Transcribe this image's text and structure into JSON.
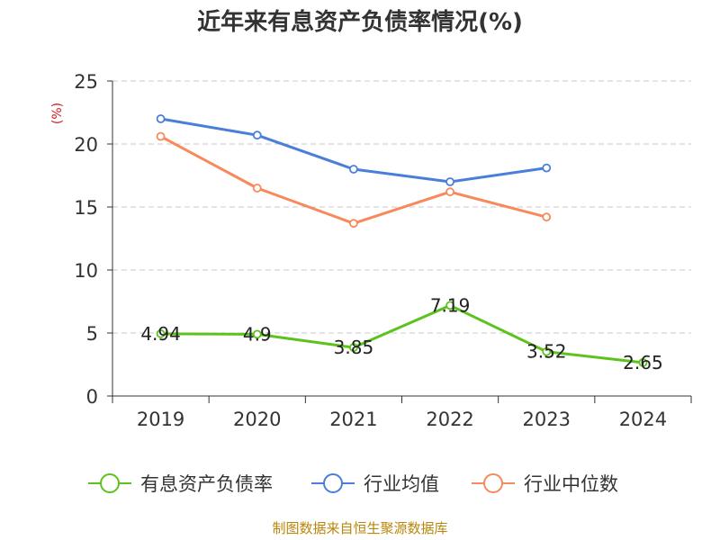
{
  "chart_data": {
    "type": "line",
    "title": "近年来有息资产负债率情况(%)",
    "xlabel": "",
    "ylabel": "(%)",
    "categories": [
      "2019",
      "2020",
      "2021",
      "2022",
      "2023",
      "2024"
    ],
    "ylim": [
      0,
      25
    ],
    "yticks": [
      0,
      5,
      10,
      15,
      20,
      25
    ],
    "grid": true,
    "legend_position": "bottom",
    "series": [
      {
        "name": "有息资产负债率",
        "color": "#5cc31c",
        "values": [
          4.94,
          4.9,
          3.85,
          7.19,
          3.52,
          2.65
        ],
        "show_labels": true
      },
      {
        "name": "行业均值",
        "color": "#4a7fd9",
        "values": [
          22.0,
          20.7,
          18.0,
          17.0,
          18.1,
          null
        ],
        "show_labels": false
      },
      {
        "name": "行业中位数",
        "color": "#f7895a",
        "values": [
          20.6,
          16.5,
          13.7,
          16.2,
          14.2,
          null
        ],
        "show_labels": false
      }
    ]
  },
  "source": "制图数据来自恒生聚源数据库"
}
